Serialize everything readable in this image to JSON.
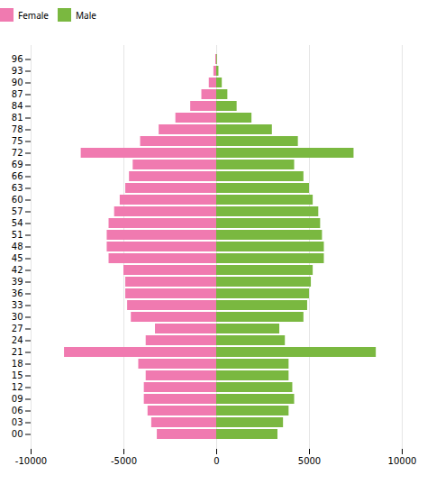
{
  "chart_data": {
    "type": "bar",
    "orientation": "horizontal",
    "categories": [
      "00",
      "03",
      "06",
      "09",
      "12",
      "15",
      "18",
      "21",
      "24",
      "27",
      "30",
      "33",
      "36",
      "39",
      "42",
      "45",
      "48",
      "51",
      "54",
      "57",
      "60",
      "63",
      "66",
      "69",
      "72",
      "75",
      "78",
      "81",
      "84",
      "87",
      "90",
      "93",
      "96"
    ],
    "series": [
      {
        "name": "Female",
        "color": "#f07ab0",
        "values": [
          -3200,
          -3500,
          -3700,
          -3900,
          -3900,
          -3800,
          -4200,
          -8200,
          -3800,
          -3300,
          -4600,
          -4800,
          -4900,
          -4900,
          -5000,
          -5800,
          -5900,
          -5900,
          -5800,
          -5500,
          -5200,
          -4900,
          -4700,
          -4500,
          -7300,
          -4100,
          -3100,
          -2200,
          -1400,
          -800,
          -400,
          -150,
          -50
        ]
      },
      {
        "name": "Male",
        "color": "#7ab840",
        "values": [
          3300,
          3600,
          3900,
          4200,
          4100,
          3900,
          3900,
          8600,
          3700,
          3400,
          4700,
          4900,
          5000,
          5100,
          5200,
          5800,
          5800,
          5700,
          5600,
          5500,
          5200,
          5000,
          4700,
          4200,
          7400,
          4400,
          3000,
          1900,
          1100,
          600,
          300,
          120,
          40
        ]
      }
    ],
    "xlim": [
      -10000,
      10000
    ],
    "xticks": [
      -10000,
      -5000,
      0,
      5000,
      10000
    ],
    "grid": true,
    "legend": "top"
  }
}
